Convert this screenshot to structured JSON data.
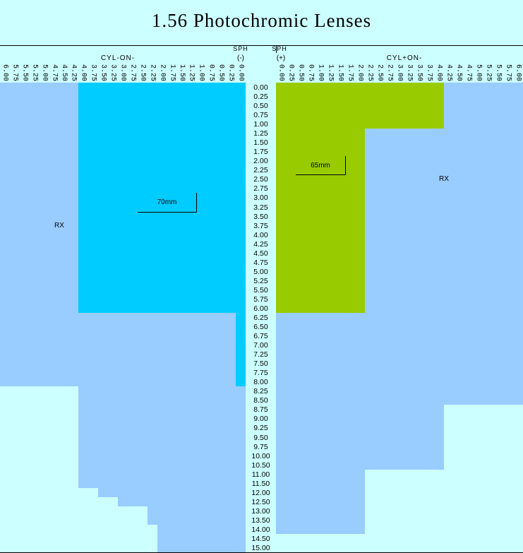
{
  "title": "1.56 Photochromic Lenses",
  "colors": {
    "cyan": "#00CCFF",
    "green": "#99CC00",
    "blue": "#99CCFF",
    "light": "#CCFFFF",
    "grid": "#000000"
  },
  "header": {
    "sph_left": "SPH",
    "sph_right": "SPH",
    "minus_sign": "(-)",
    "plus_sign": "(+)",
    "cyl_minus": "CYL-ON-",
    "cyl_plus": "CYL+ON-"
  },
  "left_cyl": [
    "6.00",
    "5.75",
    "5.50",
    "5.25",
    "5.00",
    "4.75",
    "4.50",
    "4.25",
    "4.00",
    "3.75",
    "3.50",
    "3.25",
    "3.00",
    "2.75",
    "2.50",
    "2.25",
    "2.00",
    "1.75",
    "1.50",
    "1.25",
    "1.00",
    "0.75",
    "0.50",
    "0.25",
    "0.00"
  ],
  "right_cyl": [
    "0.00",
    "0.25",
    "0.50",
    "0.75",
    "1.00",
    "1.25",
    "1.50",
    "1.75",
    "2.00",
    "2.25",
    "2.50",
    "2.75",
    "3.00",
    "3.25",
    "3.50",
    "3.75",
    "4.00",
    "4.25",
    "4.50",
    "4.75",
    "5.00",
    "5.25",
    "5.50",
    "5.75",
    "6.00"
  ],
  "labels": {
    "zone_minus": "70mm",
    "zone_plus": "65mm",
    "rx_left": "RX",
    "rx_right": "RX"
  },
  "rows": [
    {
      "sph": "0.00",
      "left": [
        [
          "blue",
          8
        ],
        [
          "cyan",
          17
        ]
      ],
      "right": [
        [
          "green",
          17
        ],
        [
          "blue",
          8
        ]
      ]
    },
    {
      "sph": "0.25",
      "left": [
        [
          "blue",
          8
        ],
        [
          "cyan",
          17
        ]
      ],
      "right": [
        [
          "green",
          17
        ],
        [
          "blue",
          8
        ]
      ]
    },
    {
      "sph": "0.50",
      "left": [
        [
          "blue",
          8
        ],
        [
          "cyan",
          17
        ]
      ],
      "right": [
        [
          "green",
          17
        ],
        [
          "blue",
          8
        ]
      ]
    },
    {
      "sph": "0.75",
      "left": [
        [
          "blue",
          8
        ],
        [
          "cyan",
          17
        ]
      ],
      "right": [
        [
          "green",
          17
        ],
        [
          "blue",
          8
        ]
      ]
    },
    {
      "sph": "1.00",
      "left": [
        [
          "blue",
          8
        ],
        [
          "cyan",
          17
        ]
      ],
      "right": [
        [
          "green",
          17
        ],
        [
          "blue",
          8
        ]
      ]
    },
    {
      "sph": "1.25",
      "left": [
        [
          "blue",
          8
        ],
        [
          "cyan",
          17
        ]
      ],
      "right": [
        [
          "green",
          9
        ],
        [
          "blue",
          16
        ]
      ]
    },
    {
      "sph": "1.50",
      "left": [
        [
          "blue",
          8
        ],
        [
          "cyan",
          17
        ]
      ],
      "right": [
        [
          "green",
          9
        ],
        [
          "blue",
          16
        ]
      ]
    },
    {
      "sph": "1.75",
      "left": [
        [
          "blue",
          8
        ],
        [
          "cyan",
          17
        ]
      ],
      "right": [
        [
          "green",
          9
        ],
        [
          "blue",
          16
        ]
      ]
    },
    {
      "sph": "2.00",
      "left": [
        [
          "blue",
          8
        ],
        [
          "cyan",
          17
        ]
      ],
      "right": [
        [
          "green",
          9
        ],
        [
          "blue",
          16
        ]
      ]
    },
    {
      "sph": "2.25",
      "left": [
        [
          "blue",
          8
        ],
        [
          "cyan",
          17
        ]
      ],
      "right": [
        [
          "green",
          9
        ],
        [
          "blue",
          16
        ]
      ]
    },
    {
      "sph": "2.50",
      "left": [
        [
          "blue",
          8
        ],
        [
          "cyan",
          17
        ]
      ],
      "right": [
        [
          "green",
          9
        ],
        [
          "blue",
          16
        ]
      ]
    },
    {
      "sph": "2.75",
      "left": [
        [
          "blue",
          8
        ],
        [
          "cyan",
          17
        ]
      ],
      "right": [
        [
          "green",
          9
        ],
        [
          "blue",
          16
        ]
      ]
    },
    {
      "sph": "3.00",
      "left": [
        [
          "blue",
          8
        ],
        [
          "cyan",
          17
        ]
      ],
      "right": [
        [
          "green",
          9
        ],
        [
          "blue",
          16
        ]
      ]
    },
    {
      "sph": "3.25",
      "left": [
        [
          "blue",
          8
        ],
        [
          "cyan",
          17
        ]
      ],
      "right": [
        [
          "green",
          9
        ],
        [
          "blue",
          16
        ]
      ]
    },
    {
      "sph": "3.50",
      "left": [
        [
          "blue",
          8
        ],
        [
          "cyan",
          17
        ]
      ],
      "right": [
        [
          "green",
          9
        ],
        [
          "blue",
          16
        ]
      ]
    },
    {
      "sph": "3.75",
      "left": [
        [
          "blue",
          8
        ],
        [
          "cyan",
          17
        ]
      ],
      "right": [
        [
          "green",
          9
        ],
        [
          "blue",
          16
        ]
      ]
    },
    {
      "sph": "4.00",
      "left": [
        [
          "blue",
          8
        ],
        [
          "cyan",
          17
        ]
      ],
      "right": [
        [
          "green",
          9
        ],
        [
          "blue",
          16
        ]
      ]
    },
    {
      "sph": "4.25",
      "left": [
        [
          "blue",
          8
        ],
        [
          "cyan",
          17
        ]
      ],
      "right": [
        [
          "green",
          9
        ],
        [
          "blue",
          16
        ]
      ]
    },
    {
      "sph": "4.50",
      "left": [
        [
          "blue",
          8
        ],
        [
          "cyan",
          17
        ]
      ],
      "right": [
        [
          "green",
          9
        ],
        [
          "blue",
          16
        ]
      ]
    },
    {
      "sph": "4.75",
      "left": [
        [
          "blue",
          8
        ],
        [
          "cyan",
          17
        ]
      ],
      "right": [
        [
          "green",
          9
        ],
        [
          "blue",
          16
        ]
      ]
    },
    {
      "sph": "5.00",
      "left": [
        [
          "blue",
          8
        ],
        [
          "cyan",
          17
        ]
      ],
      "right": [
        [
          "green",
          9
        ],
        [
          "blue",
          16
        ]
      ]
    },
    {
      "sph": "5.25",
      "left": [
        [
          "blue",
          8
        ],
        [
          "cyan",
          17
        ]
      ],
      "right": [
        [
          "green",
          9
        ],
        [
          "blue",
          16
        ]
      ]
    },
    {
      "sph": "5.50",
      "left": [
        [
          "blue",
          8
        ],
        [
          "cyan",
          17
        ]
      ],
      "right": [
        [
          "green",
          9
        ],
        [
          "blue",
          16
        ]
      ]
    },
    {
      "sph": "5.75",
      "left": [
        [
          "blue",
          8
        ],
        [
          "cyan",
          17
        ]
      ],
      "right": [
        [
          "green",
          9
        ],
        [
          "blue",
          16
        ]
      ]
    },
    {
      "sph": "6.00",
      "left": [
        [
          "blue",
          8
        ],
        [
          "cyan",
          17
        ]
      ],
      "right": [
        [
          "green",
          9
        ],
        [
          "blue",
          16
        ]
      ]
    },
    {
      "sph": "6.25",
      "left": [
        [
          "blue",
          24
        ],
        [
          "cyan",
          1
        ]
      ],
      "right": [
        [
          "blue",
          25
        ]
      ]
    },
    {
      "sph": "6.50",
      "left": [
        [
          "blue",
          24
        ],
        [
          "cyan",
          1
        ]
      ],
      "right": [
        [
          "blue",
          25
        ]
      ]
    },
    {
      "sph": "6.75",
      "left": [
        [
          "blue",
          24
        ],
        [
          "cyan",
          1
        ]
      ],
      "right": [
        [
          "blue",
          25
        ]
      ]
    },
    {
      "sph": "7.00",
      "left": [
        [
          "blue",
          24
        ],
        [
          "cyan",
          1
        ]
      ],
      "right": [
        [
          "blue",
          25
        ]
      ]
    },
    {
      "sph": "7.25",
      "left": [
        [
          "blue",
          24
        ],
        [
          "cyan",
          1
        ]
      ],
      "right": [
        [
          "blue",
          25
        ]
      ]
    },
    {
      "sph": "7.50",
      "left": [
        [
          "blue",
          24
        ],
        [
          "cyan",
          1
        ]
      ],
      "right": [
        [
          "blue",
          25
        ]
      ]
    },
    {
      "sph": "7.75",
      "left": [
        [
          "blue",
          24
        ],
        [
          "cyan",
          1
        ]
      ],
      "right": [
        [
          "blue",
          25
        ]
      ]
    },
    {
      "sph": "8.00",
      "left": [
        [
          "blue",
          24
        ],
        [
          "cyan",
          1
        ]
      ],
      "right": [
        [
          "blue",
          25
        ]
      ]
    },
    {
      "sph": "8.25",
      "left": [
        [
          "light",
          8
        ],
        [
          "blue",
          17
        ]
      ],
      "right": [
        [
          "blue",
          25
        ]
      ]
    },
    {
      "sph": "8.50",
      "left": [
        [
          "light",
          8
        ],
        [
          "blue",
          17
        ]
      ],
      "right": [
        [
          "blue",
          25
        ]
      ]
    },
    {
      "sph": "8.75",
      "left": [
        [
          "light",
          8
        ],
        [
          "blue",
          17
        ]
      ],
      "right": [
        [
          "blue",
          17
        ],
        [
          "light",
          8
        ]
      ]
    },
    {
      "sph": "9.00",
      "left": [
        [
          "light",
          8
        ],
        [
          "blue",
          17
        ]
      ],
      "right": [
        [
          "blue",
          17
        ],
        [
          "light",
          8
        ]
      ]
    },
    {
      "sph": "9.25",
      "left": [
        [
          "light",
          8
        ],
        [
          "blue",
          17
        ]
      ],
      "right": [
        [
          "blue",
          17
        ],
        [
          "light",
          8
        ]
      ]
    },
    {
      "sph": "9.50",
      "left": [
        [
          "light",
          8
        ],
        [
          "blue",
          17
        ]
      ],
      "right": [
        [
          "blue",
          17
        ],
        [
          "light",
          8
        ]
      ]
    },
    {
      "sph": "9.75",
      "left": [
        [
          "light",
          8
        ],
        [
          "blue",
          17
        ]
      ],
      "right": [
        [
          "blue",
          17
        ],
        [
          "light",
          8
        ]
      ]
    },
    {
      "sph": "10.00",
      "left": [
        [
          "light",
          8
        ],
        [
          "blue",
          17
        ]
      ],
      "right": [
        [
          "blue",
          17
        ],
        [
          "light",
          8
        ]
      ]
    },
    {
      "sph": "10.50",
      "left": [
        [
          "light",
          8
        ],
        [
          "blue",
          17
        ]
      ],
      "right": [
        [
          "blue",
          17
        ],
        [
          "light",
          8
        ]
      ]
    },
    {
      "sph": "11.00",
      "left": [
        [
          "light",
          8
        ],
        [
          "blue",
          17
        ]
      ],
      "right": [
        [
          "blue",
          9
        ],
        [
          "light",
          16
        ]
      ]
    },
    {
      "sph": "11.50",
      "left": [
        [
          "light",
          8
        ],
        [
          "blue",
          17
        ]
      ],
      "right": [
        [
          "blue",
          9
        ],
        [
          "light",
          16
        ]
      ]
    },
    {
      "sph": "12.00",
      "left": [
        [
          "light",
          10
        ],
        [
          "blue",
          15
        ]
      ],
      "right": [
        [
          "blue",
          9
        ],
        [
          "light",
          16
        ]
      ]
    },
    {
      "sph": "12.50",
      "left": [
        [
          "light",
          12
        ],
        [
          "blue",
          13
        ]
      ],
      "right": [
        [
          "blue",
          9
        ],
        [
          "light",
          16
        ]
      ]
    },
    {
      "sph": "13.00",
      "left": [
        [
          "light",
          15
        ],
        [
          "blue",
          10
        ]
      ],
      "right": [
        [
          "blue",
          9
        ],
        [
          "light",
          16
        ]
      ]
    },
    {
      "sph": "13.50",
      "left": [
        [
          "light",
          15
        ],
        [
          "blue",
          10
        ]
      ],
      "right": [
        [
          "blue",
          9
        ],
        [
          "light",
          16
        ]
      ]
    },
    {
      "sph": "14.00",
      "left": [
        [
          "light",
          16
        ],
        [
          "blue",
          9
        ]
      ],
      "right": [
        [
          "blue",
          9
        ],
        [
          "light",
          16
        ]
      ]
    },
    {
      "sph": "14.50",
      "left": [
        [
          "light",
          16
        ],
        [
          "blue",
          9
        ]
      ],
      "right": [
        [
          "light",
          25
        ]
      ]
    },
    {
      "sph": "15.00",
      "left": [
        [
          "light",
          16
        ],
        [
          "blue",
          9
        ]
      ],
      "right": [
        [
          "light",
          25
        ]
      ]
    }
  ]
}
